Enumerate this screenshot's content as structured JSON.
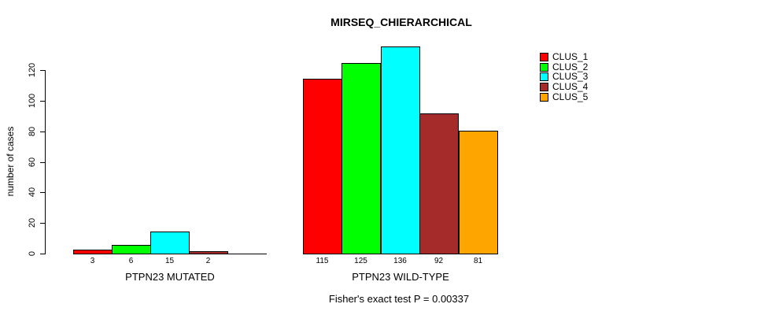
{
  "title": "MIRSEQ_CHIERARCHICAL",
  "ylabel": "number of cases",
  "footer": "Fisher's exact test P = 0.00337",
  "legend": {
    "position": "right",
    "items": [
      {
        "label": "CLUS_1",
        "color": "#FF0000"
      },
      {
        "label": "CLUS_2",
        "color": "#00FF00"
      },
      {
        "label": "CLUS_3",
        "color": "#00FFFF"
      },
      {
        "label": "CLUS_4",
        "color": "#A52A2A"
      },
      {
        "label": "CLUS_5",
        "color": "#FFA500"
      }
    ]
  },
  "chart_data": {
    "type": "bar",
    "title": "MIRSEQ_CHIERARCHICAL",
    "xlabel": "",
    "ylabel": "number of cases",
    "ylim": [
      0,
      140
    ],
    "yticks": [
      0,
      20,
      40,
      60,
      80,
      100,
      120
    ],
    "grid": false,
    "legend_position": "right",
    "series_names": [
      "CLUS_1",
      "CLUS_2",
      "CLUS_3",
      "CLUS_4",
      "CLUS_5"
    ],
    "series_colors": [
      "#FF0000",
      "#00FF00",
      "#00FFFF",
      "#A52A2A",
      "#FFA500"
    ],
    "groups": [
      {
        "label": "PTPN23 MUTATED",
        "values": [
          3,
          6,
          15,
          2,
          0
        ],
        "bar_labels": [
          "3",
          "6",
          "15",
          "2",
          ""
        ]
      },
      {
        "label": "PTPN23 WILD-TYPE",
        "values": [
          115,
          125,
          136,
          92,
          81
        ],
        "bar_labels": [
          "115",
          "125",
          "136",
          "92",
          "81"
        ]
      }
    ],
    "annotation": "Fisher's exact test P = 0.00337"
  }
}
